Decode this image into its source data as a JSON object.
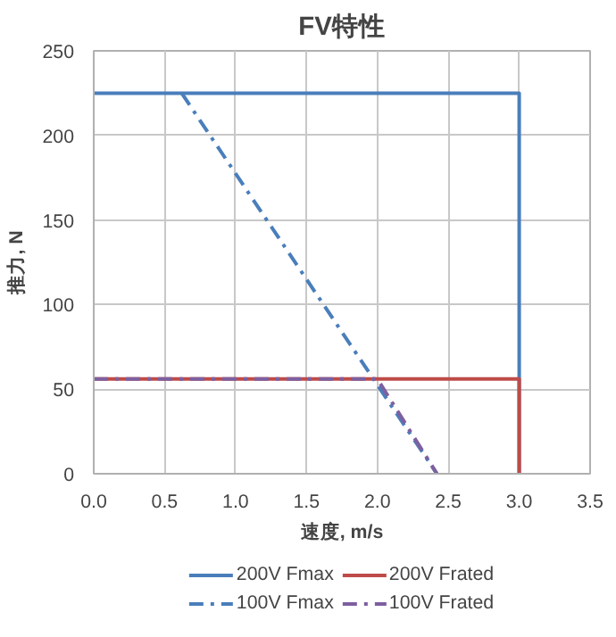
{
  "chart_data": {
    "type": "line",
    "title": "FV特性",
    "xlabel": "速度, m/s",
    "ylabel": "推力, N",
    "xlim": [
      0,
      3.5
    ],
    "xticks": [
      {
        "value": 0,
        "label": "0.0"
      },
      {
        "value": 0.5,
        "label": "0.5"
      },
      {
        "value": 1,
        "label": "1.0"
      },
      {
        "value": 1.5,
        "label": "1.5"
      },
      {
        "value": 2,
        "label": "2.0"
      },
      {
        "value": 2.5,
        "label": "2.5"
      },
      {
        "value": 3,
        "label": "3.0"
      },
      {
        "value": 3.5,
        "label": "3.5"
      }
    ],
    "ylim": [
      0,
      250
    ],
    "yticks": [
      0,
      50,
      100,
      150,
      200,
      250
    ],
    "grid": true,
    "legend": "bottom",
    "marker": "none",
    "series": [
      {
        "name": "200V Fmax",
        "color": "#4a7ebb",
        "line_style": "solid",
        "x": [
          0,
          3,
          3
        ],
        "values": [
          225,
          225,
          0
        ]
      },
      {
        "name": "200V Frated",
        "color": "#be4b48",
        "line_style": "solid",
        "x": [
          0,
          3,
          3
        ],
        "values": [
          56,
          56,
          0
        ]
      },
      {
        "name": "100V Fmax",
        "color": "#4a7ebb",
        "line_style": "dashdot",
        "x": [
          0.62,
          2.42
        ],
        "values": [
          225,
          0
        ]
      },
      {
        "name": "100V Frated",
        "color": "#7d60a0",
        "line_style": "dashdot",
        "x": [
          0,
          2,
          2.42
        ],
        "values": [
          56,
          56,
          0
        ]
      }
    ]
  }
}
